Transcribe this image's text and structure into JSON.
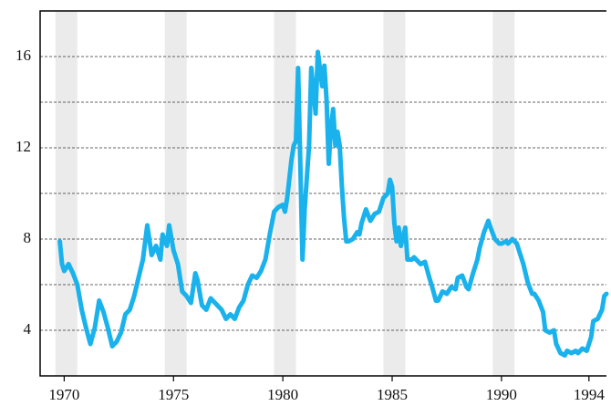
{
  "chart_data": {
    "type": "line",
    "x": [
      1969.8,
      1969.9,
      1970.0,
      1970.2,
      1970.4,
      1970.6,
      1970.8,
      1971.0,
      1971.2,
      1971.4,
      1971.6,
      1971.8,
      1972.0,
      1972.2,
      1972.4,
      1972.6,
      1972.8,
      1973.0,
      1973.2,
      1973.4,
      1973.6,
      1973.8,
      1974.0,
      1974.2,
      1974.4,
      1974.5,
      1974.7,
      1974.8,
      1975.0,
      1975.2,
      1975.4,
      1975.6,
      1975.8,
      1976.0,
      1976.1,
      1976.3,
      1976.5,
      1976.7,
      1976.9,
      1977.2,
      1977.4,
      1977.6,
      1977.8,
      1978.0,
      1978.2,
      1978.4,
      1978.6,
      1978.8,
      1979.0,
      1979.2,
      1979.4,
      1979.6,
      1979.8,
      1980.0,
      1980.1,
      1980.2,
      1980.4,
      1980.5,
      1980.6,
      1980.7,
      1980.8,
      1980.9,
      1981.0,
      1981.2,
      1981.3,
      1981.4,
      1981.5,
      1981.6,
      1981.8,
      1981.9,
      1982.0,
      1982.1,
      1982.2,
      1982.3,
      1982.4,
      1982.5,
      1982.6,
      1982.7,
      1982.8,
      1982.9,
      1983.0,
      1983.2,
      1983.4,
      1983.5,
      1983.6,
      1983.8,
      1984.0,
      1984.2,
      1984.4,
      1984.6,
      1984.8,
      1984.9,
      1985.0,
      1985.1,
      1985.2,
      1985.3,
      1985.4,
      1985.6,
      1985.7,
      1985.9,
      1986.0,
      1986.3,
      1986.5,
      1986.7,
      1986.8,
      1987.0,
      1987.1,
      1987.3,
      1987.5,
      1987.7,
      1987.9,
      1988.0,
      1988.2,
      1988.4,
      1988.5,
      1988.7,
      1988.9,
      1989.0,
      1989.2,
      1989.4,
      1989.5,
      1989.7,
      1989.9,
      1990.0,
      1990.2,
      1990.3,
      1990.5,
      1990.7,
      1990.8,
      1991.0,
      1991.2,
      1991.4,
      1991.5,
      1991.7,
      1991.9,
      1992.0,
      1992.2,
      1992.4,
      1992.5,
      1992.7,
      1992.9,
      1993.0,
      1993.2,
      1993.4,
      1993.5,
      1993.7,
      1993.9,
      1994.1,
      1994.2,
      1994.4,
      1994.6,
      1994.7,
      1994.8
    ],
    "values": [
      7.9,
      6.9,
      6.6,
      6.9,
      6.5,
      6.0,
      4.9,
      4.1,
      3.4,
      4.1,
      5.3,
      4.8,
      4.1,
      3.3,
      3.5,
      3.9,
      4.7,
      4.9,
      5.5,
      6.3,
      7.1,
      8.6,
      7.3,
      7.7,
      7.1,
      8.2,
      7.7,
      8.6,
      7.5,
      6.9,
      5.7,
      5.5,
      5.2,
      6.5,
      6.2,
      5.1,
      4.9,
      5.4,
      5.2,
      4.9,
      4.5,
      4.7,
      4.5,
      5.0,
      5.3,
      6.0,
      6.4,
      6.3,
      6.6,
      7.1,
      8.2,
      9.2,
      9.4,
      9.5,
      9.2,
      9.8,
      11.5,
      12.1,
      12.3,
      15.5,
      11.3,
      7.1,
      9.3,
      12.1,
      15.5,
      14.5,
      13.5,
      16.2,
      14.7,
      15.6,
      14.1,
      11.3,
      12.9,
      13.7,
      12.1,
      12.7,
      12.1,
      10.3,
      8.9,
      7.9,
      7.9,
      8.0,
      8.3,
      8.2,
      8.7,
      9.3,
      8.8,
      9.1,
      9.2,
      9.8,
      10.0,
      10.6,
      10.3,
      8.7,
      7.9,
      8.5,
      7.7,
      8.5,
      7.1,
      7.1,
      7.2,
      6.9,
      7.0,
      6.3,
      6.0,
      5.3,
      5.3,
      5.7,
      5.6,
      5.9,
      5.8,
      6.3,
      6.4,
      5.9,
      5.8,
      6.5,
      7.1,
      7.6,
      8.3,
      8.8,
      8.5,
      8.0,
      7.8,
      7.8,
      7.9,
      7.8,
      8.0,
      7.8,
      7.5,
      6.9,
      6.1,
      5.6,
      5.6,
      5.3,
      4.8,
      4.0,
      3.9,
      4.0,
      3.4,
      3.0,
      2.9,
      3.1,
      3.0,
      3.1,
      3.0,
      3.2,
      3.1,
      3.7,
      4.4,
      4.5,
      4.9,
      5.5,
      5.6
    ],
    "color": "#1ab2ec",
    "xlim": [
      1968.9,
      1994.8
    ],
    "xticks": [
      1970,
      1975,
      1980,
      1985,
      1990,
      1994
    ],
    "ylim": [
      2,
      18
    ],
    "yticks": [
      4,
      8,
      12,
      16
    ],
    "minor_yticks": [
      6,
      10,
      14
    ],
    "grid": true,
    "shaded_bands": [
      [
        1969.6,
        1970.6
      ],
      [
        1974.6,
        1975.6
      ],
      [
        1979.6,
        1980.6
      ],
      [
        1984.6,
        1985.6
      ],
      [
        1989.6,
        1990.6
      ]
    ],
    "band_color": "#ebebeb"
  }
}
